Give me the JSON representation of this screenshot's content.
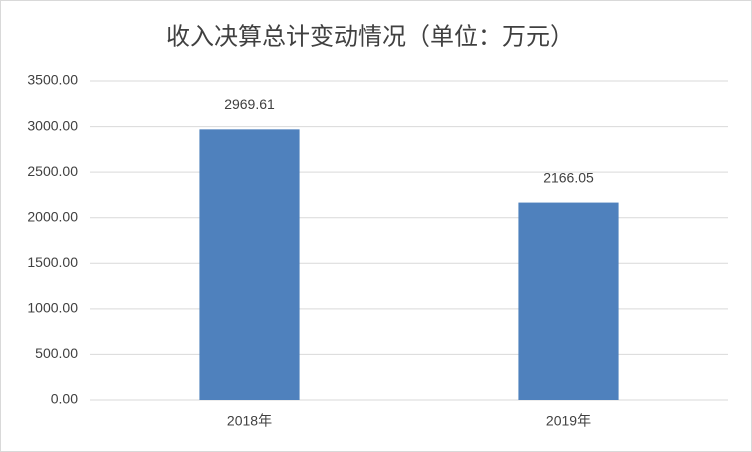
{
  "chart_data": {
    "type": "bar",
    "title": "收入决算总计变动情况（单位：万元）",
    "categories": [
      "2018年",
      "2019年"
    ],
    "values": [
      2969.61,
      2166.05
    ],
    "color": "#4f81bd",
    "ylim": [
      0,
      3500
    ],
    "yticks": [
      {
        "value": 0,
        "label": "0.00"
      },
      {
        "value": 500,
        "label": "500.00"
      },
      {
        "value": 1000,
        "label": "1000.00"
      },
      {
        "value": 1500,
        "label": "1500.00"
      },
      {
        "value": 2000,
        "label": "2000.00"
      },
      {
        "value": 2500,
        "label": "2500.00"
      },
      {
        "value": 3000,
        "label": "3000.00"
      },
      {
        "value": 3500,
        "label": "3500.00"
      }
    ],
    "grid": true
  }
}
